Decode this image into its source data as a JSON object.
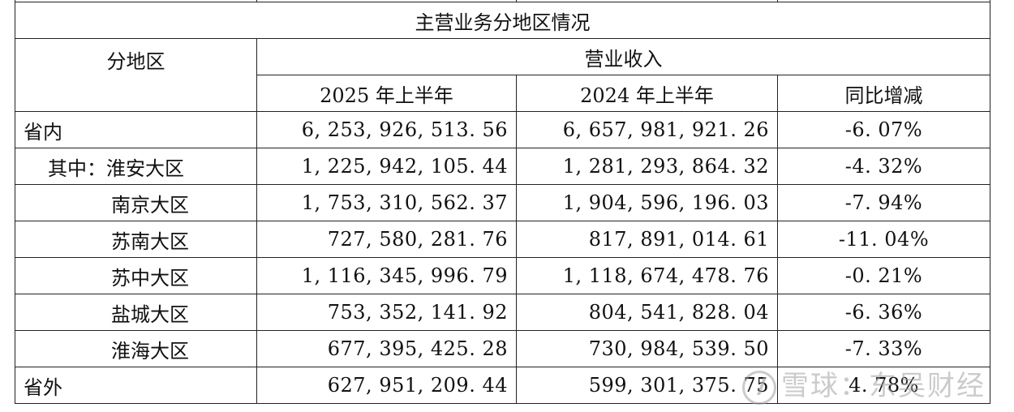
{
  "table": {
    "title": "主营业务分地区情况",
    "header_region": "分地区",
    "header_revenue": "营业收入",
    "col_2025": "2025 年上半年",
    "col_2024": "2024 年上半年",
    "col_change": "同比增减",
    "rows": [
      {
        "region": "省内",
        "v2025": "6, 253, 926, 513. 56",
        "v2024": "6, 657, 981, 921. 26",
        "change": "-6. 07%",
        "indent": 0
      },
      {
        "region": "其中：淮安大区",
        "v2025": "1, 225, 942, 105. 44",
        "v2024": "1, 281, 293, 864. 32",
        "change": "-4. 32%",
        "indent": 1
      },
      {
        "region": "南京大区",
        "v2025": "1, 753, 310, 562. 37",
        "v2024": "1, 904, 596, 196. 03",
        "change": "-7. 94%",
        "indent": 2
      },
      {
        "region": "苏南大区",
        "v2025": "727, 580, 281. 76",
        "v2024": "817, 891, 014. 61",
        "change": "-11. 04%",
        "indent": 2
      },
      {
        "region": "苏中大区",
        "v2025": "1, 116, 345, 996. 79",
        "v2024": "1, 118, 674, 478. 76",
        "change": "-0. 21%",
        "indent": 2
      },
      {
        "region": "盐城大区",
        "v2025": "753, 352, 141. 92",
        "v2024": "804, 541, 828. 04",
        "change": "-6. 36%",
        "indent": 2
      },
      {
        "region": "淮海大区",
        "v2025": "677, 395, 425. 28",
        "v2024": "730, 984, 539. 50",
        "change": "-7. 33%",
        "indent": 2
      },
      {
        "region": "省外",
        "v2025": "627, 951, 209. 44",
        "v2024": "599, 301, 375. 75",
        "change": "4. 78%",
        "indent": 0
      }
    ]
  },
  "watermark": {
    "text": "雪球：东吴财经",
    "icon": "snowball-logo-icon"
  }
}
